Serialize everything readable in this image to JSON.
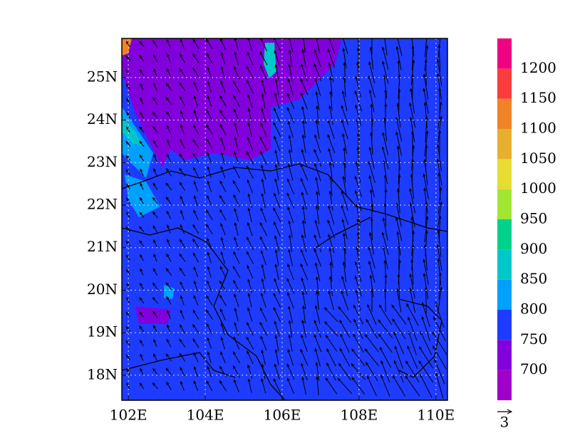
{
  "map": {
    "xlim": [
      101.83,
      110.3
    ],
    "ylim": [
      17.41,
      25.92
    ],
    "xticks": [
      {
        "value": 102,
        "label": "102E"
      },
      {
        "value": 104,
        "label": "104E"
      },
      {
        "value": 106,
        "label": "106E"
      },
      {
        "value": 108,
        "label": "108E"
      },
      {
        "value": 110,
        "label": "110E"
      }
    ],
    "yticks": [
      {
        "value": 18,
        "label": "18N"
      },
      {
        "value": 19,
        "label": "19N"
      },
      {
        "value": 20,
        "label": "20N"
      },
      {
        "value": 21,
        "label": "21N"
      },
      {
        "value": 22,
        "label": "22N"
      },
      {
        "value": 23,
        "label": "23N"
      },
      {
        "value": 24,
        "label": "24N"
      },
      {
        "value": 25,
        "label": "25N"
      }
    ],
    "grid": true,
    "colorbar": {
      "levels": [
        700,
        750,
        800,
        850,
        900,
        950,
        1000,
        1050,
        1100,
        1150,
        1200
      ],
      "colors": [
        "#a000c8",
        "#8200dc",
        "#1e3cff",
        "#00a0ff",
        "#00c8c8",
        "#00d28c",
        "#a0e632",
        "#e6dc32",
        "#e6af2d",
        "#f08228",
        "#fa3c3c",
        "#f00082"
      ]
    },
    "reference_vector": {
      "value": 3
    }
  }
}
